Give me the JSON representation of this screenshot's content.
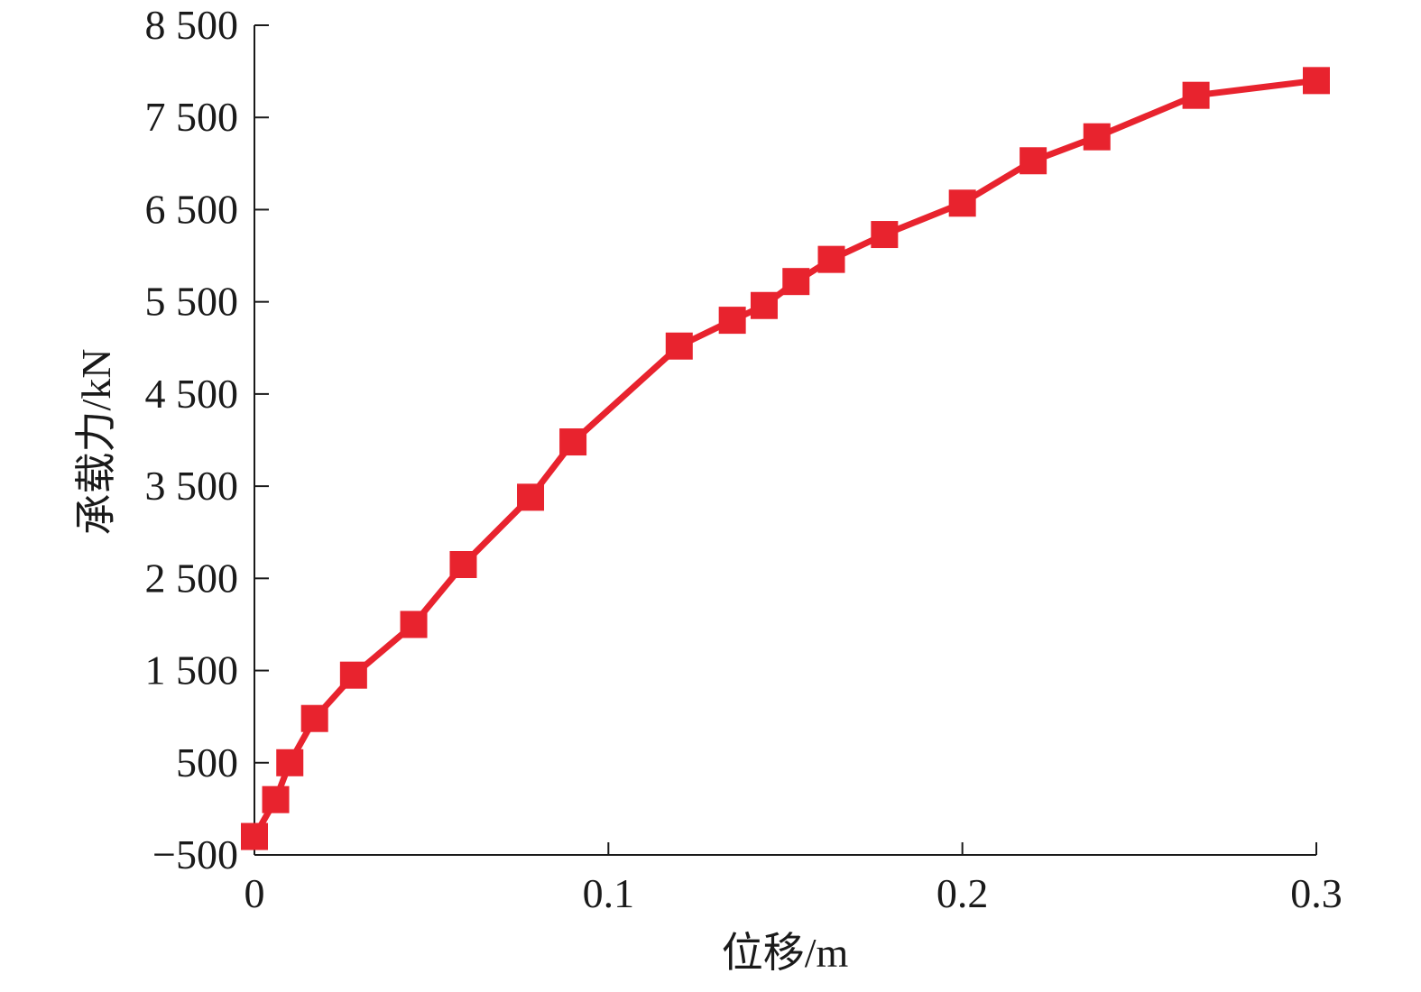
{
  "chart_data": {
    "type": "line",
    "xlabel": "位移/m",
    "ylabel": "承载力/kN",
    "xlim": [
      0,
      0.3
    ],
    "ylim": [
      -500,
      8500
    ],
    "x_ticks": [
      0,
      0.1,
      0.2,
      0.3
    ],
    "x_tick_labels": [
      "0",
      "0.1",
      "0.2",
      "0.3"
    ],
    "y_ticks": [
      -500,
      500,
      1500,
      2500,
      3500,
      4500,
      5500,
      6500,
      7500,
      8500
    ],
    "y_tick_labels": [
      "−500",
      "500",
      "1 500",
      "2 500",
      "3 500",
      "4 500",
      "5 500",
      "6 500",
      "7 500",
      "8 500"
    ],
    "grid": false,
    "legend": "none",
    "series": [
      {
        "color": "#e8232e",
        "marker": "square",
        "x": [
          0,
          0.006,
          0.01,
          0.017,
          0.028,
          0.045,
          0.059,
          0.078,
          0.09,
          0.12,
          0.135,
          0.144,
          0.153,
          0.163,
          0.178,
          0.2,
          0.22,
          0.238,
          0.266,
          0.3
        ],
        "y": [
          -300,
          100,
          500,
          980,
          1450,
          2000,
          2650,
          3380,
          3980,
          5020,
          5300,
          5460,
          5720,
          5960,
          6230,
          6570,
          7030,
          7290,
          7740,
          7900
        ]
      }
    ]
  }
}
